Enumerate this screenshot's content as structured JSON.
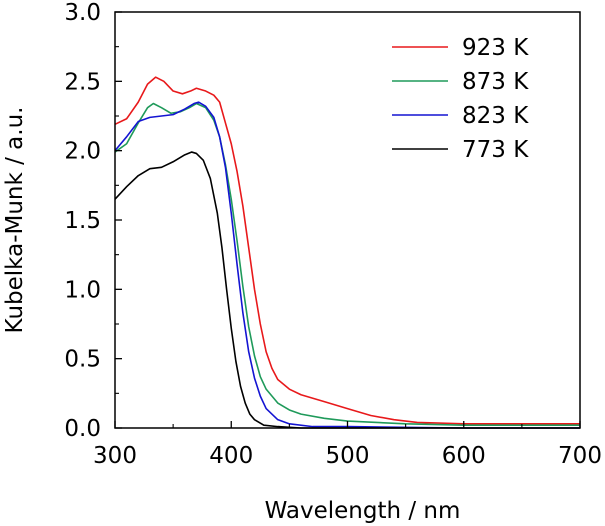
{
  "chart_data": {
    "type": "line",
    "title": "",
    "xlabel": "Wavelength / nm",
    "ylabel": "Kubelka-Munk / a.u.",
    "xlim": [
      300,
      700
    ],
    "ylim": [
      0,
      3.0
    ],
    "xticks": [
      300,
      400,
      500,
      600,
      700
    ],
    "yticks": [
      0.0,
      0.5,
      1.0,
      1.5,
      2.0,
      2.5,
      3.0
    ],
    "xtick_labels": [
      "300",
      "400",
      "500",
      "600",
      "700"
    ],
    "ytick_labels": [
      "0.0",
      "0.5",
      "1.0",
      "1.5",
      "2.0",
      "2.5",
      "3.0"
    ],
    "grid": false,
    "legend_position": "top-right",
    "series": [
      {
        "name": "923 K",
        "color": "#e8191b",
        "points": [
          [
            300,
            2.19
          ],
          [
            310,
            2.23
          ],
          [
            320,
            2.35
          ],
          [
            328,
            2.48
          ],
          [
            335,
            2.53
          ],
          [
            342,
            2.5
          ],
          [
            350,
            2.43
          ],
          [
            358,
            2.41
          ],
          [
            365,
            2.43
          ],
          [
            370,
            2.45
          ],
          [
            378,
            2.43
          ],
          [
            385,
            2.4
          ],
          [
            390,
            2.35
          ],
          [
            395,
            2.2
          ],
          [
            400,
            2.05
          ],
          [
            405,
            1.85
          ],
          [
            410,
            1.6
          ],
          [
            415,
            1.3
          ],
          [
            420,
            1.0
          ],
          [
            425,
            0.75
          ],
          [
            430,
            0.55
          ],
          [
            435,
            0.43
          ],
          [
            440,
            0.35
          ],
          [
            450,
            0.28
          ],
          [
            460,
            0.24
          ],
          [
            480,
            0.19
          ],
          [
            500,
            0.14
          ],
          [
            520,
            0.09
          ],
          [
            540,
            0.06
          ],
          [
            560,
            0.04
          ],
          [
            600,
            0.03
          ],
          [
            650,
            0.03
          ],
          [
            700,
            0.03
          ]
        ]
      },
      {
        "name": "873 K",
        "color": "#1f9a5a",
        "points": [
          [
            300,
            1.99
          ],
          [
            310,
            2.05
          ],
          [
            320,
            2.2
          ],
          [
            328,
            2.31
          ],
          [
            333,
            2.34
          ],
          [
            340,
            2.31
          ],
          [
            348,
            2.27
          ],
          [
            356,
            2.28
          ],
          [
            364,
            2.31
          ],
          [
            370,
            2.34
          ],
          [
            378,
            2.31
          ],
          [
            385,
            2.22
          ],
          [
            390,
            2.1
          ],
          [
            395,
            1.9
          ],
          [
            400,
            1.65
          ],
          [
            405,
            1.35
          ],
          [
            410,
            1.02
          ],
          [
            415,
            0.73
          ],
          [
            420,
            0.52
          ],
          [
            425,
            0.37
          ],
          [
            430,
            0.28
          ],
          [
            440,
            0.18
          ],
          [
            450,
            0.13
          ],
          [
            460,
            0.1
          ],
          [
            480,
            0.07
          ],
          [
            500,
            0.05
          ],
          [
            550,
            0.03
          ],
          [
            600,
            0.02
          ],
          [
            700,
            0.02
          ]
        ]
      },
      {
        "name": "823 K",
        "color": "#1414d2",
        "points": [
          [
            300,
            2.0
          ],
          [
            310,
            2.1
          ],
          [
            320,
            2.21
          ],
          [
            330,
            2.24
          ],
          [
            340,
            2.25
          ],
          [
            350,
            2.26
          ],
          [
            360,
            2.3
          ],
          [
            368,
            2.34
          ],
          [
            372,
            2.35
          ],
          [
            378,
            2.32
          ],
          [
            385,
            2.24
          ],
          [
            390,
            2.1
          ],
          [
            395,
            1.88
          ],
          [
            400,
            1.55
          ],
          [
            405,
            1.18
          ],
          [
            410,
            0.83
          ],
          [
            415,
            0.55
          ],
          [
            420,
            0.36
          ],
          [
            425,
            0.23
          ],
          [
            430,
            0.14
          ],
          [
            440,
            0.06
          ],
          [
            450,
            0.03
          ],
          [
            470,
            0.01
          ],
          [
            500,
            0.01
          ],
          [
            600,
            0.0
          ],
          [
            700,
            0.0
          ]
        ]
      },
      {
        "name": "773 K",
        "color": "#000000",
        "points": [
          [
            300,
            1.65
          ],
          [
            310,
            1.74
          ],
          [
            320,
            1.82
          ],
          [
            330,
            1.87
          ],
          [
            340,
            1.88
          ],
          [
            350,
            1.92
          ],
          [
            360,
            1.97
          ],
          [
            366,
            1.99
          ],
          [
            370,
            1.98
          ],
          [
            376,
            1.93
          ],
          [
            382,
            1.8
          ],
          [
            388,
            1.55
          ],
          [
            392,
            1.3
          ],
          [
            396,
            1.0
          ],
          [
            400,
            0.72
          ],
          [
            404,
            0.48
          ],
          [
            408,
            0.3
          ],
          [
            412,
            0.18
          ],
          [
            416,
            0.1
          ],
          [
            420,
            0.06
          ],
          [
            428,
            0.02
          ],
          [
            440,
            0.01
          ],
          [
            460,
            0.0
          ],
          [
            700,
            0.0
          ]
        ]
      }
    ]
  }
}
